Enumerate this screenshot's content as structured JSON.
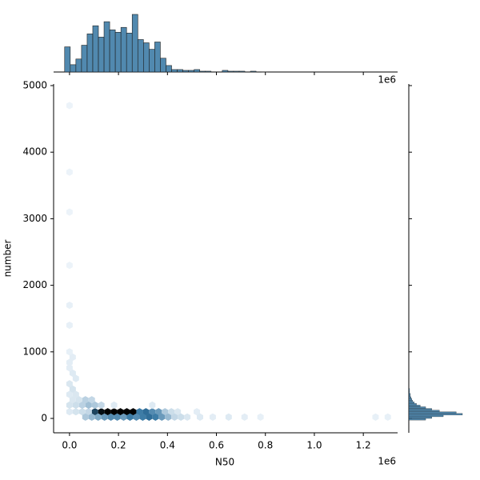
{
  "chart_data": {
    "type": "hexbin",
    "xlabel": "N50",
    "ylabel": "number",
    "x_offset_label": "1e6",
    "marginal_x_offset_label": "1e6",
    "color": "#3274a1",
    "xlim": [
      -65000,
      1340000
    ],
    "ylim": [
      -216,
      5024
    ],
    "xticks": [
      {
        "value": 0,
        "label": "0.0"
      },
      {
        "value": 200000,
        "label": "0.2"
      },
      {
        "value": 400000,
        "label": "0.4"
      },
      {
        "value": 600000,
        "label": "0.6"
      },
      {
        "value": 800000,
        "label": "0.8"
      },
      {
        "value": 1000000,
        "label": "1.0"
      },
      {
        "value": 1200000,
        "label": "1.2"
      }
    ],
    "yticks": [
      0,
      1000,
      2000,
      3000,
      4000,
      5000
    ],
    "hexes": {
      "x": [
        104000,
        130000,
        156000,
        182000,
        208000,
        234000,
        260000,
        78000,
        286000,
        312000,
        338000,
        364000,
        390000,
        416000,
        442000,
        520000,
        0,
        26000,
        52000,
        65000,
        91000,
        117000,
        143000,
        169000,
        195000,
        221000,
        247000,
        273000,
        299000,
        325000,
        351000,
        377000,
        403000,
        429000,
        455000,
        481000,
        533000,
        585000,
        650000,
        715000,
        780000,
        1250000,
        1300000,
        52000,
        78000,
        104000,
        130000,
        26000,
        0,
        182000,
        338000,
        65000,
        91000,
        39000,
        13000,
        26000,
        0,
        13000,
        0,
        26000,
        13000,
        0,
        0,
        13000,
        0,
        0,
        0,
        0,
        0,
        0,
        0
      ],
      "y": [
        100,
        100,
        100,
        100,
        100,
        100,
        100,
        100,
        100,
        100,
        100,
        100,
        100,
        100,
        100,
        100,
        100,
        100,
        100,
        20,
        20,
        20,
        20,
        20,
        20,
        20,
        20,
        20,
        20,
        20,
        20,
        20,
        20,
        20,
        20,
        20,
        20,
        20,
        20,
        20,
        20,
        20,
        20,
        200,
        200,
        200,
        200,
        200,
        200,
        200,
        200,
        280,
        280,
        280,
        280,
        360,
        360,
        440,
        520,
        600,
        680,
        760,
        840,
        920,
        1000,
        1400,
        1700,
        2300,
        3100,
        3700,
        4700
      ],
      "counts": [
        60,
        80,
        85,
        85,
        85,
        85,
        85,
        10,
        40,
        45,
        35,
        30,
        15,
        8,
        5,
        3,
        4,
        6,
        8,
        15,
        20,
        25,
        30,
        35,
        35,
        30,
        40,
        35,
        40,
        45,
        40,
        30,
        20,
        10,
        8,
        5,
        4,
        3,
        4,
        3,
        2,
        2,
        2,
        12,
        18,
        15,
        10,
        8,
        6,
        4,
        4,
        12,
        10,
        6,
        5,
        5,
        4,
        6,
        5,
        4,
        4,
        3,
        3,
        3,
        2,
        2,
        2,
        1,
        1,
        1,
        1
      ]
    },
    "marginal_x": {
      "bins": [
        -20000,
        3000,
        26000,
        49000,
        72000,
        95000,
        118000,
        141000,
        164000,
        187000,
        210000,
        233000,
        256000,
        279000,
        302000,
        325000,
        348000,
        371000,
        394000,
        417000,
        440000,
        463000,
        486000,
        509000,
        532000,
        555000,
        578000,
        601000,
        624000,
        647000,
        670000,
        693000,
        716000,
        739000,
        762000,
        785000,
        808000
      ],
      "counts": [
        124,
        36,
        64,
        132,
        188,
        228,
        172,
        248,
        208,
        196,
        220,
        192,
        284,
        160,
        144,
        112,
        148,
        68,
        32,
        12,
        12,
        8,
        8,
        12,
        4,
        4,
        0,
        0,
        8,
        4,
        4,
        4,
        0,
        4,
        0,
        1
      ]
    },
    "marginal_y": {
      "bins": [
        -25,
        0,
        25,
        50,
        75,
        100,
        125,
        150,
        175,
        200,
        225,
        250,
        275,
        300,
        325,
        350,
        375,
        400,
        425,
        450
      ],
      "counts": [
        22,
        30,
        45,
        70,
        62,
        40,
        30,
        22,
        15,
        10,
        7,
        5,
        4,
        3,
        2,
        2,
        1,
        1,
        1
      ]
    }
  }
}
